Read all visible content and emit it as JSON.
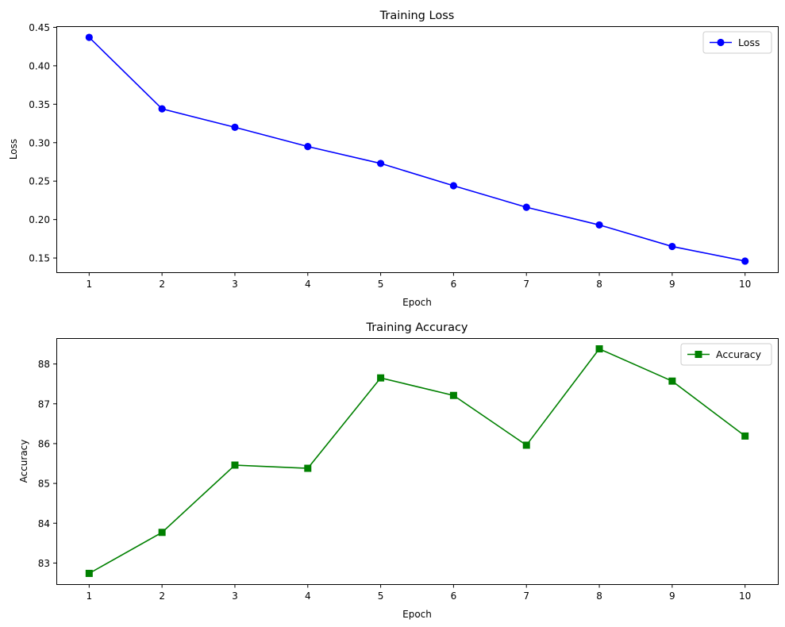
{
  "chart_data": [
    {
      "type": "line",
      "title": "Training Loss",
      "xlabel": "Epoch",
      "ylabel": "Loss",
      "x": [
        1,
        2,
        3,
        4,
        5,
        6,
        7,
        8,
        9,
        10
      ],
      "xticks": [
        "1",
        "2",
        "3",
        "4",
        "5",
        "6",
        "7",
        "8",
        "9",
        "10"
      ],
      "xlim": [
        0.55,
        10.45
      ],
      "ylim": [
        0.1315,
        0.4515
      ],
      "yticks": [
        "0.15",
        "0.20",
        "0.25",
        "0.30",
        "0.35",
        "0.40",
        "0.45"
      ],
      "ytick_values": [
        0.15,
        0.2,
        0.25,
        0.3,
        0.35,
        0.4,
        0.45
      ],
      "grid": false,
      "legend": "upper right",
      "series": [
        {
          "name": "Loss",
          "color": "#0000ff",
          "marker": "circle",
          "values": [
            0.437,
            0.344,
            0.32,
            0.295,
            0.273,
            0.244,
            0.216,
            0.193,
            0.165,
            0.146
          ]
        }
      ]
    },
    {
      "type": "line",
      "title": "Training Accuracy",
      "xlabel": "Epoch",
      "ylabel": "Accuracy",
      "x": [
        1,
        2,
        3,
        4,
        5,
        6,
        7,
        8,
        9,
        10
      ],
      "xticks": [
        "1",
        "2",
        "3",
        "4",
        "5",
        "6",
        "7",
        "8",
        "9",
        "10"
      ],
      "xlim": [
        0.55,
        10.45
      ],
      "ylim": [
        82.47,
        88.65
      ],
      "yticks": [
        "83",
        "84",
        "85",
        "86",
        "87",
        "88"
      ],
      "ytick_values": [
        83,
        84,
        85,
        86,
        87,
        88
      ],
      "grid": false,
      "legend": "upper right",
      "series": [
        {
          "name": "Accuracy",
          "color": "#008000",
          "marker": "square",
          "values": [
            82.74,
            83.77,
            85.46,
            85.38,
            87.65,
            87.21,
            85.96,
            88.38,
            87.57,
            86.19
          ]
        }
      ]
    }
  ]
}
